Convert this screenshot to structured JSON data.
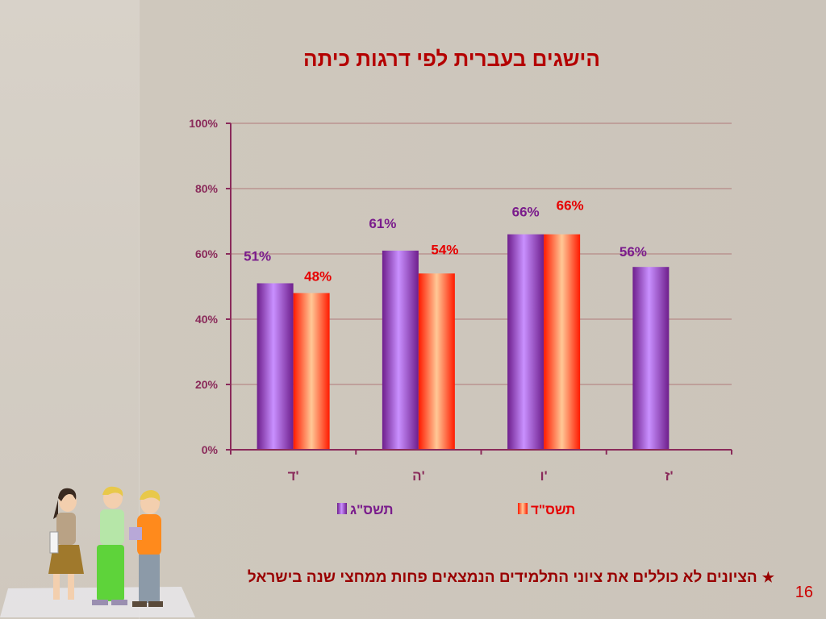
{
  "slide": {
    "title": "הישגים בעברית לפי דרגות כיתה",
    "footnote_star": "★",
    "footnote": "הציונים לא כוללים את ציוני התלמידים הנמצאים פחות ממחצי שנה בישראל",
    "page_number": "16"
  },
  "colors": {
    "series1_dark": "#6e1e8c",
    "series1_light": "#c990ff",
    "series1_label": "#7a1c8c",
    "series2_dark": "#ff1a00",
    "series2_light": "#ffc896",
    "series2_label": "#e60000",
    "axis": "#8a2a5a",
    "grid": "#b07a7a"
  },
  "chart_data": {
    "type": "bar",
    "categories": [
      "ד'",
      "ה'",
      "ו'",
      "ז'"
    ],
    "ylim": [
      0,
      100
    ],
    "yticks": [
      0,
      20,
      40,
      60,
      80,
      100
    ],
    "ytick_labels": [
      "0%",
      "20%",
      "40%",
      "60%",
      "80%",
      "100%"
    ],
    "grid": true,
    "legend_position": "bottom",
    "series": [
      {
        "name": "תשס\"ג",
        "values": [
          51,
          61,
          66,
          56
        ],
        "labels": [
          "51%",
          "61%",
          "66%",
          "56%"
        ]
      },
      {
        "name": "תשס\"ד",
        "values": [
          48,
          54,
          66,
          null
        ],
        "labels": [
          "48%",
          "54%",
          "66%",
          null
        ]
      }
    ]
  }
}
